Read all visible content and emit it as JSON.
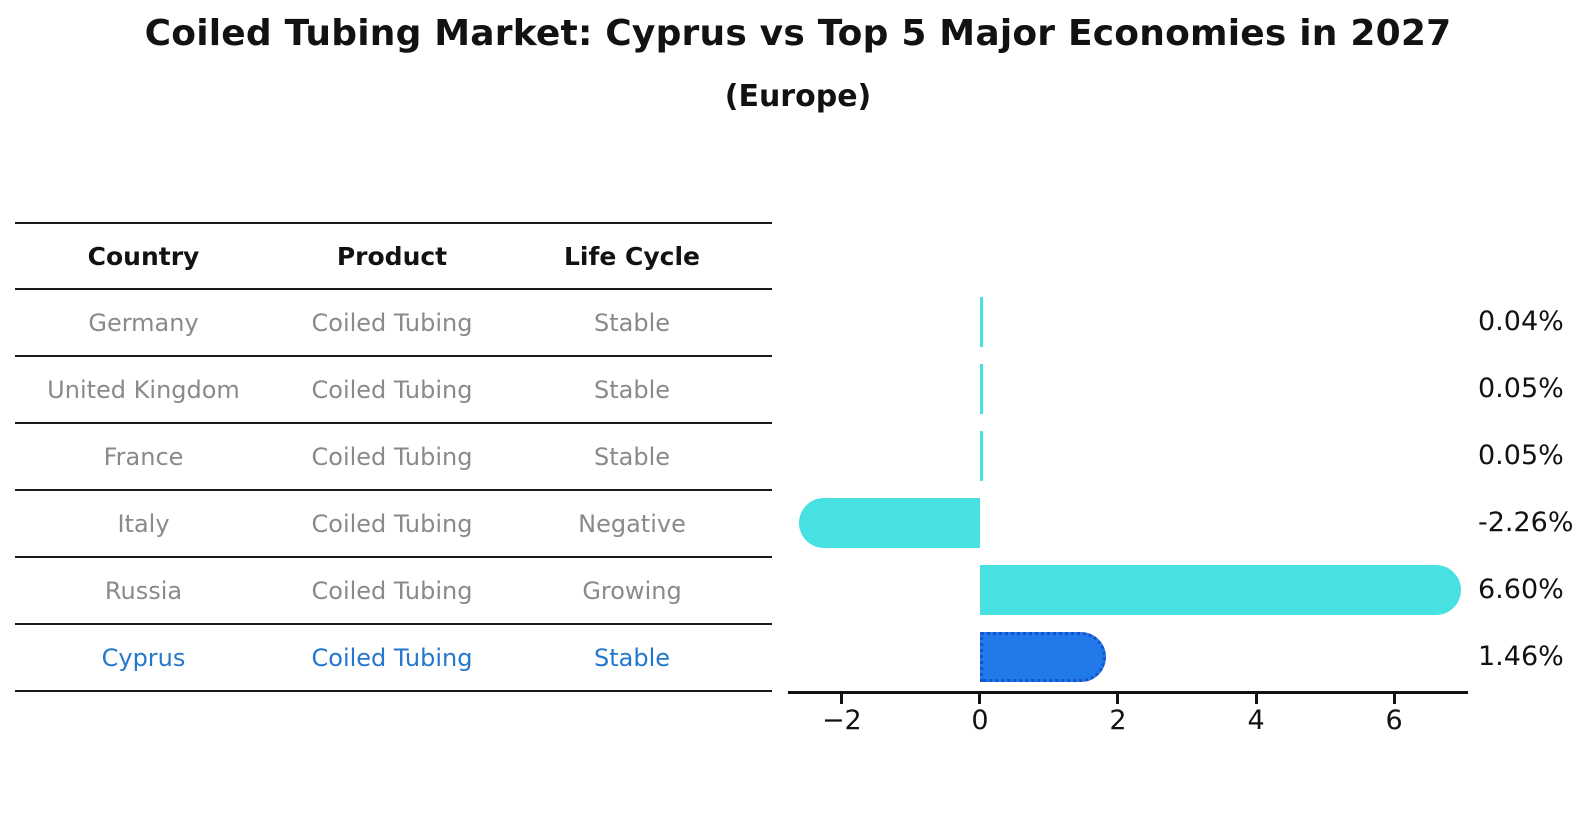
{
  "title": "Coiled Tubing Market: Cyprus vs Top 5 Major Economies in 2027",
  "subtitle": "(Europe)",
  "table": {
    "headers": [
      "Country",
      "Product",
      "Life Cycle"
    ],
    "rows": [
      {
        "country": "Germany",
        "product": "Coiled Tubing",
        "life_cycle": "Stable",
        "highlight": false
      },
      {
        "country": "United Kingdom",
        "product": "Coiled Tubing",
        "life_cycle": "Stable",
        "highlight": false
      },
      {
        "country": "France",
        "product": "Coiled Tubing",
        "life_cycle": "Stable",
        "highlight": false
      },
      {
        "country": "Italy",
        "product": "Coiled Tubing",
        "life_cycle": "Negative",
        "highlight": false
      },
      {
        "country": "Russia",
        "product": "Coiled Tubing",
        "life_cycle": "Growing",
        "highlight": false
      },
      {
        "country": "Cyprus",
        "product": "Coiled Tubing",
        "life_cycle": "Stable",
        "highlight": true
      }
    ]
  },
  "chart_data": {
    "type": "bar",
    "orientation": "horizontal",
    "categories": [
      "Germany",
      "United Kingdom",
      "France",
      "Italy",
      "Russia",
      "Cyprus"
    ],
    "values": [
      0.04,
      0.05,
      0.05,
      -2.26,
      6.6,
      1.46
    ],
    "value_labels": [
      "0.04%",
      "0.05%",
      "0.05%",
      "-2.26%",
      "6.60%",
      "1.46%"
    ],
    "highlight_index": 5,
    "xlim": [
      -2.78,
      7.07
    ],
    "x_ticks": [
      {
        "value": -2,
        "label": "−2"
      },
      {
        "value": 0,
        "label": "0"
      },
      {
        "value": 2,
        "label": "2"
      },
      {
        "value": 4,
        "label": "4"
      },
      {
        "value": 6,
        "label": "6"
      }
    ],
    "grid": false,
    "legend": false,
    "bar_color": "#47E1E1",
    "highlight_color": "#2279EA",
    "highlight_border_color": "#1353CE",
    "axis_color": "#121212",
    "label_color": "#121212"
  }
}
